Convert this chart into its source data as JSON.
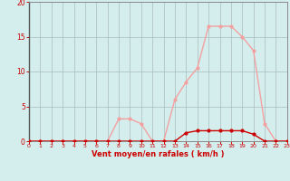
{
  "x": [
    0,
    1,
    2,
    3,
    4,
    5,
    6,
    7,
    8,
    9,
    10,
    11,
    12,
    13,
    14,
    15,
    16,
    17,
    18,
    19,
    20,
    21,
    22,
    23
  ],
  "y_moyen": [
    0,
    0,
    0,
    0,
    0,
    0,
    0,
    0,
    3.2,
    3.2,
    2.5,
    0,
    0,
    6,
    8.5,
    10.5,
    16.5,
    16.5,
    16.5,
    15,
    13,
    2.5,
    0,
    0
  ],
  "y_rafales": [
    0,
    0,
    0,
    0,
    0,
    0,
    0,
    0,
    0,
    0,
    0,
    0,
    0,
    0,
    1.2,
    1.5,
    1.5,
    1.5,
    1.5,
    1.5,
    1.0,
    0,
    0,
    0
  ],
  "color_moyen": "#f4a0a0",
  "color_rafales": "#cc0000",
  "xlabel": "Vent moyen/en rafales ( km/h )",
  "xlim": [
    0,
    23
  ],
  "ylim": [
    0,
    20
  ],
  "yticks": [
    0,
    5,
    10,
    15,
    20
  ],
  "xticks": [
    0,
    1,
    2,
    3,
    4,
    5,
    6,
    7,
    8,
    9,
    10,
    11,
    12,
    13,
    14,
    15,
    16,
    17,
    18,
    19,
    20,
    21,
    22,
    23
  ],
  "bg_color": "#d4eeee",
  "grid_color": "#ccdddd",
  "tick_color": "#cc0000",
  "label_color": "#cc0000",
  "spine_color": "#888888"
}
